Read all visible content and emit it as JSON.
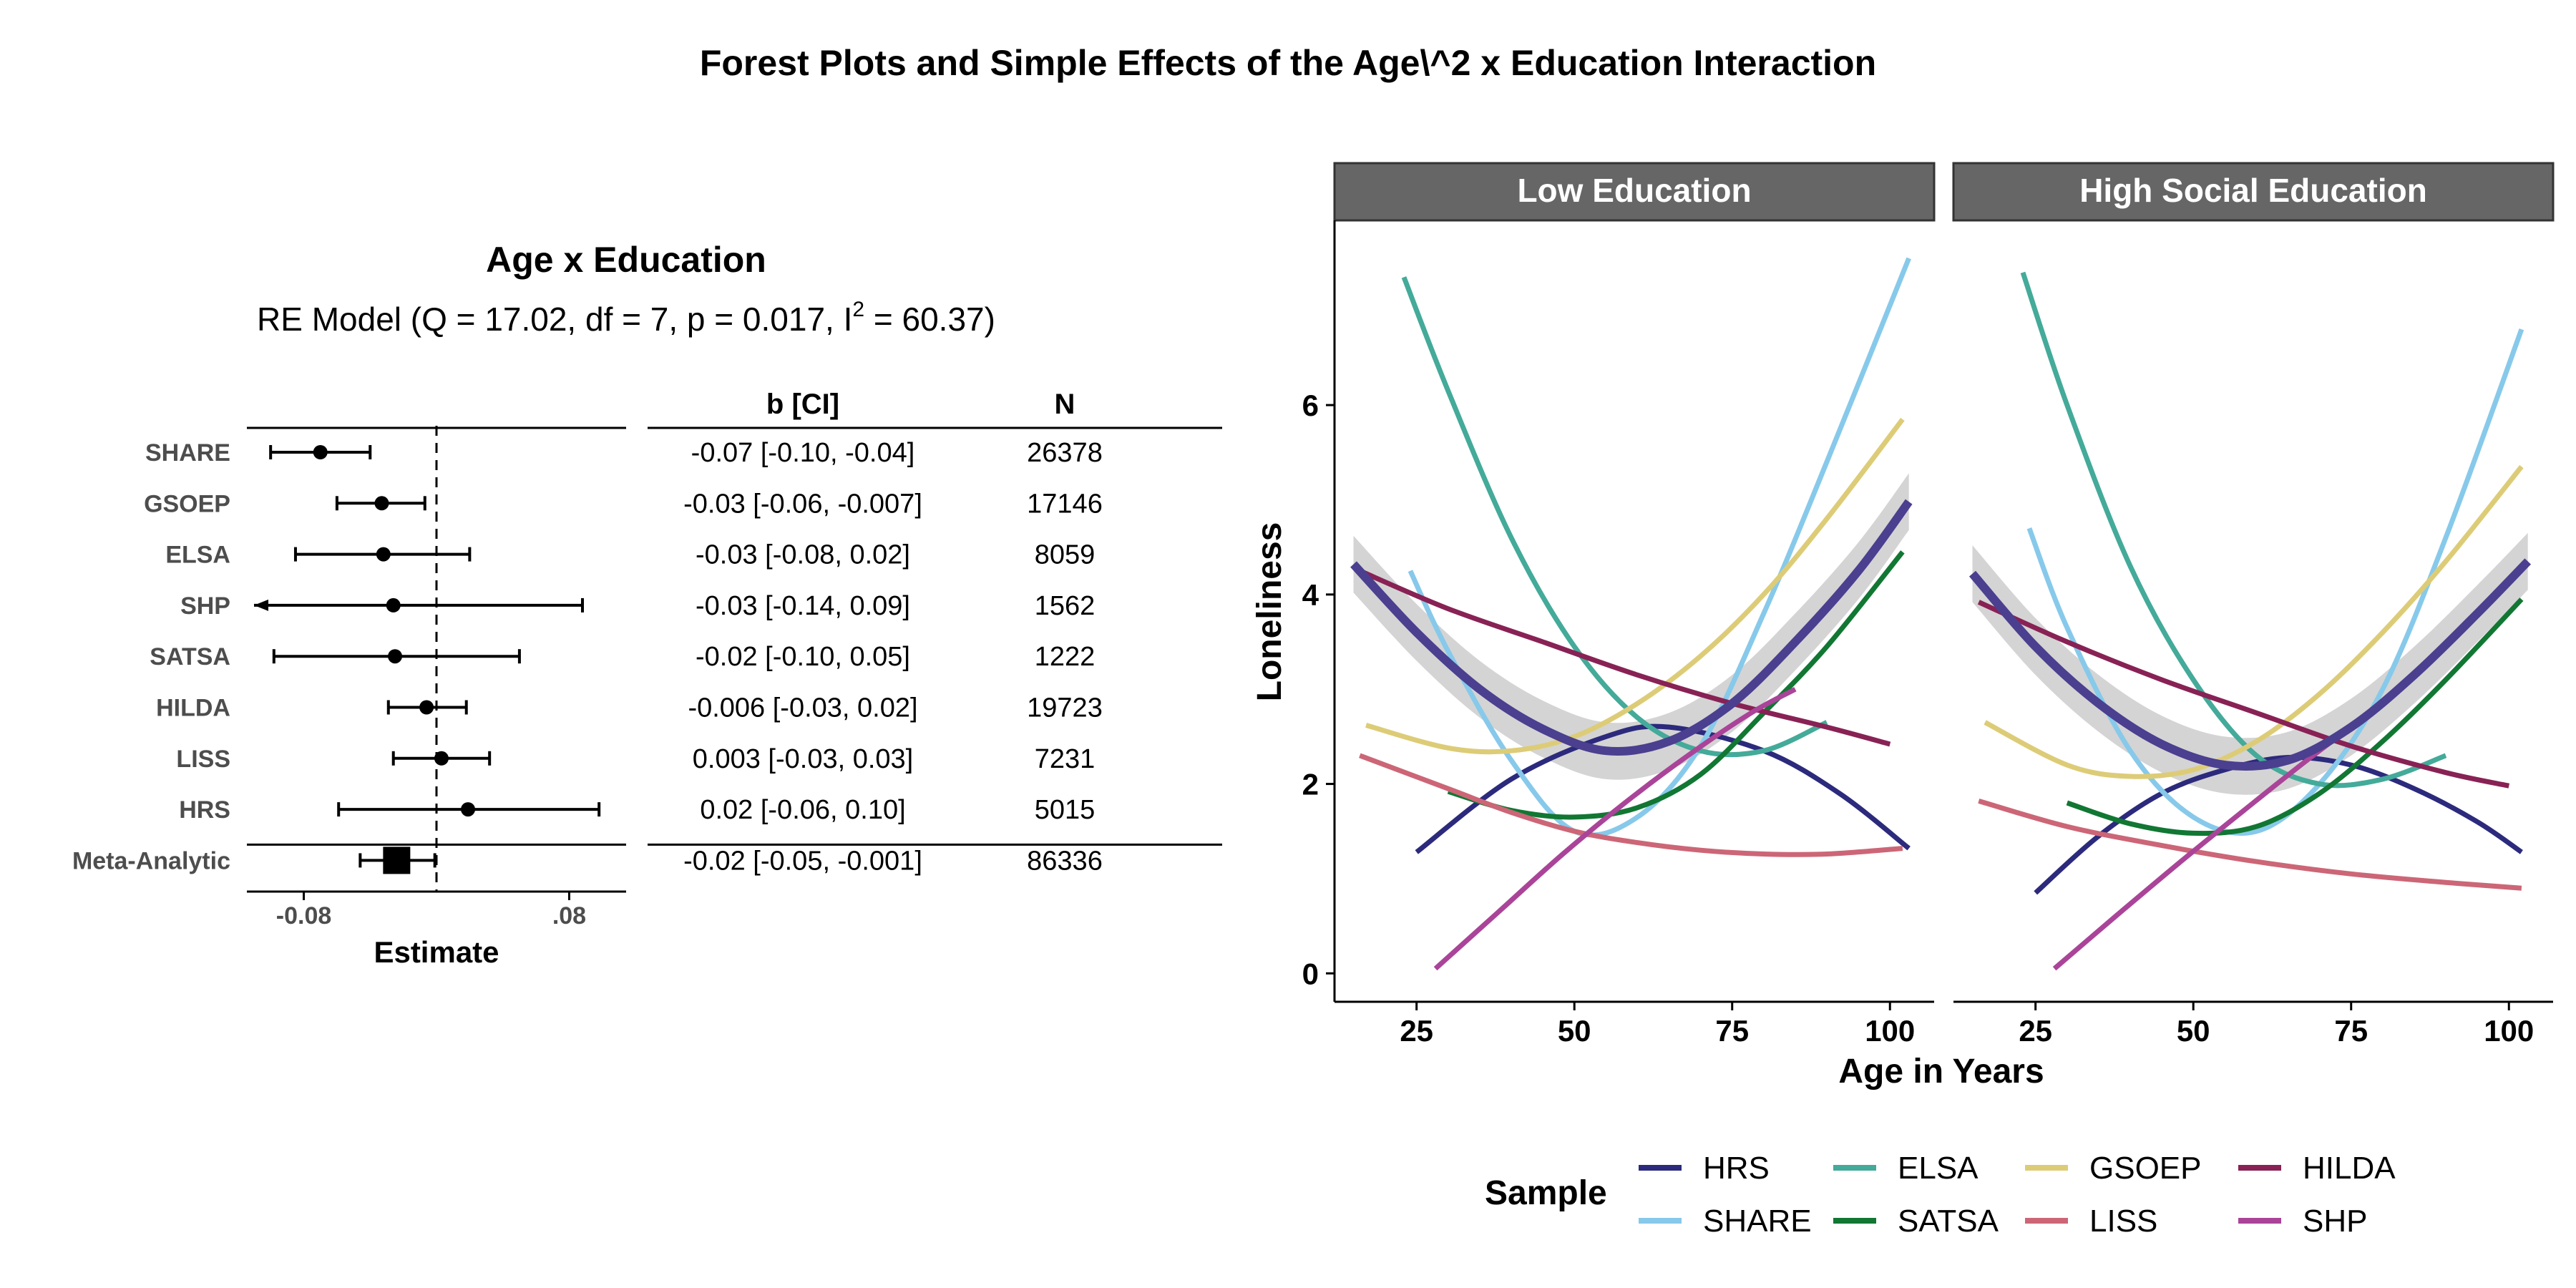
{
  "title": "Forest Plots and Simple Effects of the Age\\^2 x Education Interaction",
  "colors": {
    "HRS": "#2c2a7c",
    "SHARE": "#87c9ea",
    "ELSA": "#44aa99",
    "SATSA": "#117733",
    "GSOEP": "#ddcc77",
    "LISS": "#cc6677",
    "HILDA": "#882255",
    "SHP": "#aa4499",
    "overall": "#4b3f8f",
    "strip": "#666666",
    "ribbon": "#cccccc"
  },
  "forest": {
    "title": "Age x Education",
    "subtitle_pre": "RE Model (Q = 17.02, df = 7, p = 0.017, I",
    "subtitle_sup": "2",
    "subtitle_post": " = 60.37)",
    "col_b": "b [CI]",
    "col_n": "N",
    "xlabel": "Estimate",
    "xlim": [
      -0.11,
      0.11
    ],
    "xticks": [
      {
        "v": -0.08,
        "label": "-0.08"
      },
      {
        "v": 0.08,
        "label": ".08"
      }
    ],
    "rows": [
      {
        "label": "SHARE",
        "est": -0.07,
        "lo": -0.1,
        "hi": -0.04,
        "ci_text": "-0.07 [-0.10, -0.04]",
        "n": "26378"
      },
      {
        "label": "GSOEP",
        "est": -0.033,
        "lo": -0.06,
        "hi": -0.007,
        "ci_text": "-0.03 [-0.06, -0.007]",
        "n": "17146"
      },
      {
        "label": "ELSA",
        "est": -0.032,
        "lo": -0.085,
        "hi": 0.02,
        "ci_text": "-0.03 [-0.08, 0.02]",
        "n": "8059"
      },
      {
        "label": "SHP",
        "est": -0.026,
        "lo": -0.14,
        "hi": 0.088,
        "ci_text": "-0.03 [-0.14, 0.09]",
        "n": "1562"
      },
      {
        "label": "SATSA",
        "est": -0.025,
        "lo": -0.098,
        "hi": 0.05,
        "ci_text": "-0.02 [-0.10, 0.05]",
        "n": "1222"
      },
      {
        "label": "HILDA",
        "est": -0.006,
        "lo": -0.029,
        "hi": 0.018,
        "ci_text": "-0.006 [-0.03, 0.02]",
        "n": "19723"
      },
      {
        "label": "LISS",
        "est": 0.003,
        "lo": -0.026,
        "hi": 0.032,
        "ci_text": "0.003 [-0.03, 0.03]",
        "n": "7231"
      },
      {
        "label": "HRS",
        "est": 0.019,
        "lo": -0.059,
        "hi": 0.098,
        "ci_text": "0.02 [-0.06, 0.10]",
        "n": "5015"
      }
    ],
    "meta": {
      "label": "Meta-Analytic",
      "est": -0.024,
      "lo": -0.046,
      "hi": -0.001,
      "ci_text": "-0.02 [-0.05, -0.001]",
      "n": "86336"
    }
  },
  "chart_data": {
    "type": "line",
    "xlabel": "Age in Years",
    "ylabel": "Loneliness",
    "xlim": [
      12,
      107
    ],
    "ylim": [
      -0.3,
      7.95
    ],
    "xticks": [
      25,
      50,
      75,
      100
    ],
    "yticks": [
      0,
      2,
      4,
      6
    ],
    "legend": {
      "title": "Sample",
      "position": "bottom",
      "order": [
        "HRS",
        "ELSA",
        "GSOEP",
        "HILDA",
        "SHARE",
        "SATSA",
        "LISS",
        "SHP"
      ]
    },
    "panels": [
      {
        "label": "Low Education",
        "series": [
          {
            "name": "HRS",
            "points": [
              [
                25,
                1.28
              ],
              [
                40,
                2.05
              ],
              [
                55,
                2.5
              ],
              [
                65,
                2.6
              ],
              [
                80,
                2.35
              ],
              [
                92,
                1.9
              ],
              [
                103,
                1.32
              ]
            ]
          },
          {
            "name": "SHARE",
            "points": [
              [
                24,
                4.25
              ],
              [
                30,
                3.4
              ],
              [
                40,
                2.25
              ],
              [
                50,
                1.5
              ],
              [
                60,
                1.65
              ],
              [
                70,
                2.4
              ],
              [
                80,
                3.8
              ],
              [
                90,
                5.4
              ],
              [
                103,
                7.55
              ]
            ]
          },
          {
            "name": "ELSA",
            "points": [
              [
                23,
                7.35
              ],
              [
                30,
                6.15
              ],
              [
                40,
                4.6
              ],
              [
                50,
                3.45
              ],
              [
                60,
                2.7
              ],
              [
                70,
                2.35
              ],
              [
                80,
                2.35
              ],
              [
                90,
                2.65
              ]
            ]
          },
          {
            "name": "SATSA",
            "points": [
              [
                30,
                1.92
              ],
              [
                40,
                1.72
              ],
              [
                50,
                1.65
              ],
              [
                60,
                1.75
              ],
              [
                70,
                2.1
              ],
              [
                80,
                2.75
              ],
              [
                90,
                3.45
              ],
              [
                102,
                4.45
              ]
            ]
          },
          {
            "name": "GSOEP",
            "points": [
              [
                17,
                2.62
              ],
              [
                30,
                2.38
              ],
              [
                40,
                2.35
              ],
              [
                50,
                2.5
              ],
              [
                60,
                2.85
              ],
              [
                70,
                3.35
              ],
              [
                80,
                4.0
              ],
              [
                90,
                4.8
              ],
              [
                102,
                5.85
              ]
            ]
          },
          {
            "name": "LISS",
            "points": [
              [
                16,
                2.3
              ],
              [
                30,
                1.95
              ],
              [
                40,
                1.7
              ],
              [
                50,
                1.5
              ],
              [
                60,
                1.38
              ],
              [
                70,
                1.3
              ],
              [
                80,
                1.26
              ],
              [
                90,
                1.26
              ],
              [
                102,
                1.32
              ]
            ]
          },
          {
            "name": "HILDA",
            "points": [
              [
                16,
                4.25
              ],
              [
                30,
                3.85
              ],
              [
                45,
                3.5
              ],
              [
                60,
                3.15
              ],
              [
                75,
                2.85
              ],
              [
                90,
                2.6
              ],
              [
                100,
                2.42
              ]
            ]
          },
          {
            "name": "SHP",
            "points": [
              [
                28,
                0.05
              ],
              [
                38,
                0.65
              ],
              [
                48,
                1.25
              ],
              [
                58,
                1.8
              ],
              [
                68,
                2.3
              ],
              [
                78,
                2.75
              ],
              [
                85,
                3.0
              ]
            ]
          },
          {
            "name": "Overall",
            "points": [
              [
                15,
                4.32
              ],
              [
                25,
                3.6
              ],
              [
                35,
                3.0
              ],
              [
                45,
                2.58
              ],
              [
                55,
                2.35
              ],
              [
                65,
                2.45
              ],
              [
                75,
                2.85
              ],
              [
                85,
                3.5
              ],
              [
                95,
                4.25
              ],
              [
                103,
                4.98
              ]
            ],
            "band": 0.3
          }
        ]
      },
      {
        "label": "High Social Education",
        "series": [
          {
            "name": "HRS",
            "points": [
              [
                25,
                0.85
              ],
              [
                35,
                1.45
              ],
              [
                45,
                1.9
              ],
              [
                55,
                2.15
              ],
              [
                65,
                2.28
              ],
              [
                75,
                2.2
              ],
              [
                85,
                1.95
              ],
              [
                95,
                1.6
              ],
              [
                102,
                1.28
              ]
            ]
          },
          {
            "name": "SHARE",
            "points": [
              [
                24,
                4.7
              ],
              [
                30,
                3.65
              ],
              [
                40,
                2.35
              ],
              [
                50,
                1.65
              ],
              [
                60,
                1.5
              ],
              [
                70,
                2.0
              ],
              [
                80,
                3.0
              ],
              [
                90,
                4.6
              ],
              [
                102,
                6.8
              ]
            ]
          },
          {
            "name": "ELSA",
            "points": [
              [
                23,
                7.4
              ],
              [
                30,
                6.0
              ],
              [
                40,
                4.3
              ],
              [
                50,
                3.1
              ],
              [
                60,
                2.3
              ],
              [
                70,
                2.0
              ],
              [
                80,
                2.05
              ],
              [
                90,
                2.3
              ]
            ]
          },
          {
            "name": "SATSA",
            "points": [
              [
                30,
                1.8
              ],
              [
                40,
                1.58
              ],
              [
                50,
                1.48
              ],
              [
                60,
                1.55
              ],
              [
                70,
                1.9
              ],
              [
                80,
                2.45
              ],
              [
                90,
                3.1
              ],
              [
                102,
                3.95
              ]
            ]
          },
          {
            "name": "GSOEP",
            "points": [
              [
                17,
                2.65
              ],
              [
                30,
                2.2
              ],
              [
                40,
                2.08
              ],
              [
                50,
                2.15
              ],
              [
                60,
                2.45
              ],
              [
                70,
                2.95
              ],
              [
                80,
                3.6
              ],
              [
                90,
                4.35
              ],
              [
                102,
                5.35
              ]
            ]
          },
          {
            "name": "LISS",
            "points": [
              [
                16,
                1.82
              ],
              [
                30,
                1.55
              ],
              [
                45,
                1.35
              ],
              [
                60,
                1.18
              ],
              [
                75,
                1.05
              ],
              [
                90,
                0.96
              ],
              [
                102,
                0.9
              ]
            ]
          },
          {
            "name": "HILDA",
            "points": [
              [
                16,
                3.92
              ],
              [
                30,
                3.5
              ],
              [
                45,
                3.1
              ],
              [
                60,
                2.75
              ],
              [
                75,
                2.4
              ],
              [
                90,
                2.12
              ],
              [
                100,
                1.98
              ]
            ]
          },
          {
            "name": "SHP",
            "points": [
              [
                28,
                0.05
              ],
              [
                38,
                0.62
              ],
              [
                48,
                1.18
              ],
              [
                58,
                1.72
              ],
              [
                68,
                2.25
              ],
              [
                77,
                2.7
              ]
            ]
          },
          {
            "name": "Overall",
            "points": [
              [
                15,
                4.22
              ],
              [
                25,
                3.45
              ],
              [
                35,
                2.85
              ],
              [
                45,
                2.42
              ],
              [
                55,
                2.2
              ],
              [
                65,
                2.25
              ],
              [
                75,
                2.6
              ],
              [
                85,
                3.15
              ],
              [
                95,
                3.8
              ],
              [
                103,
                4.35
              ]
            ],
            "band": 0.3
          }
        ]
      }
    ]
  }
}
